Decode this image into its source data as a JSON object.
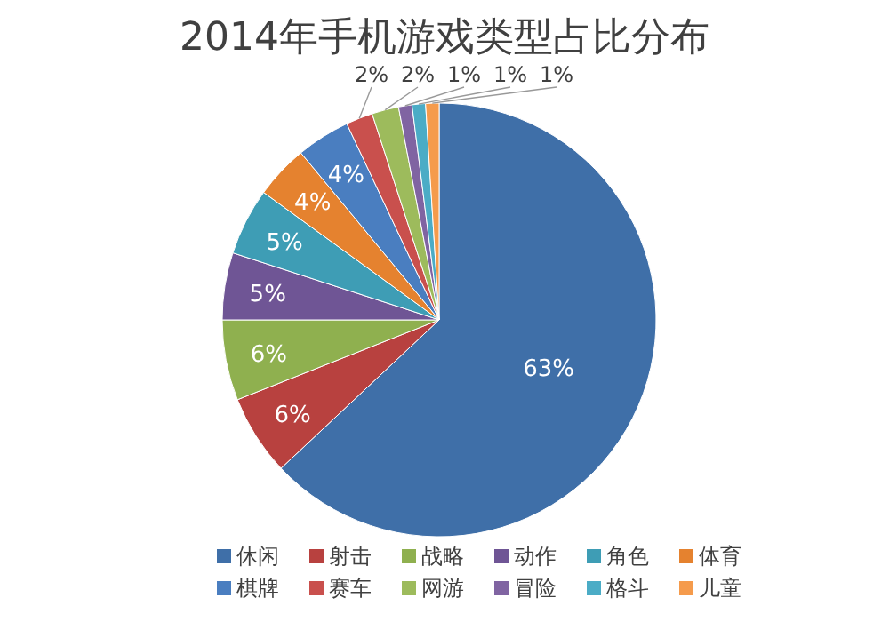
{
  "chart_data": {
    "type": "pie",
    "title": "2014年手机游戏类型占比分布",
    "categories": [
      "休闲",
      "射击",
      "战略",
      "动作",
      "角色",
      "体育",
      "棋牌",
      "赛车",
      "网游",
      "冒险",
      "格斗",
      "儿童"
    ],
    "values": [
      63,
      6,
      6,
      5,
      5,
      4,
      4,
      2,
      2,
      1,
      1,
      1
    ],
    "value_labels": [
      "63%",
      "6%",
      "6%",
      "5%",
      "5%",
      "4%",
      "4%",
      "2%",
      "2%",
      "1%",
      "1%",
      "1%"
    ],
    "colors": [
      "#3f6fa8",
      "#b8413f",
      "#8fb04f",
      "#6f5595",
      "#3e9db5",
      "#e5822f",
      "#4a7ec0",
      "#c9504d",
      "#9dbb5c",
      "#8064a2",
      "#4bacc6",
      "#f59b4c"
    ],
    "legend": "bottom"
  }
}
